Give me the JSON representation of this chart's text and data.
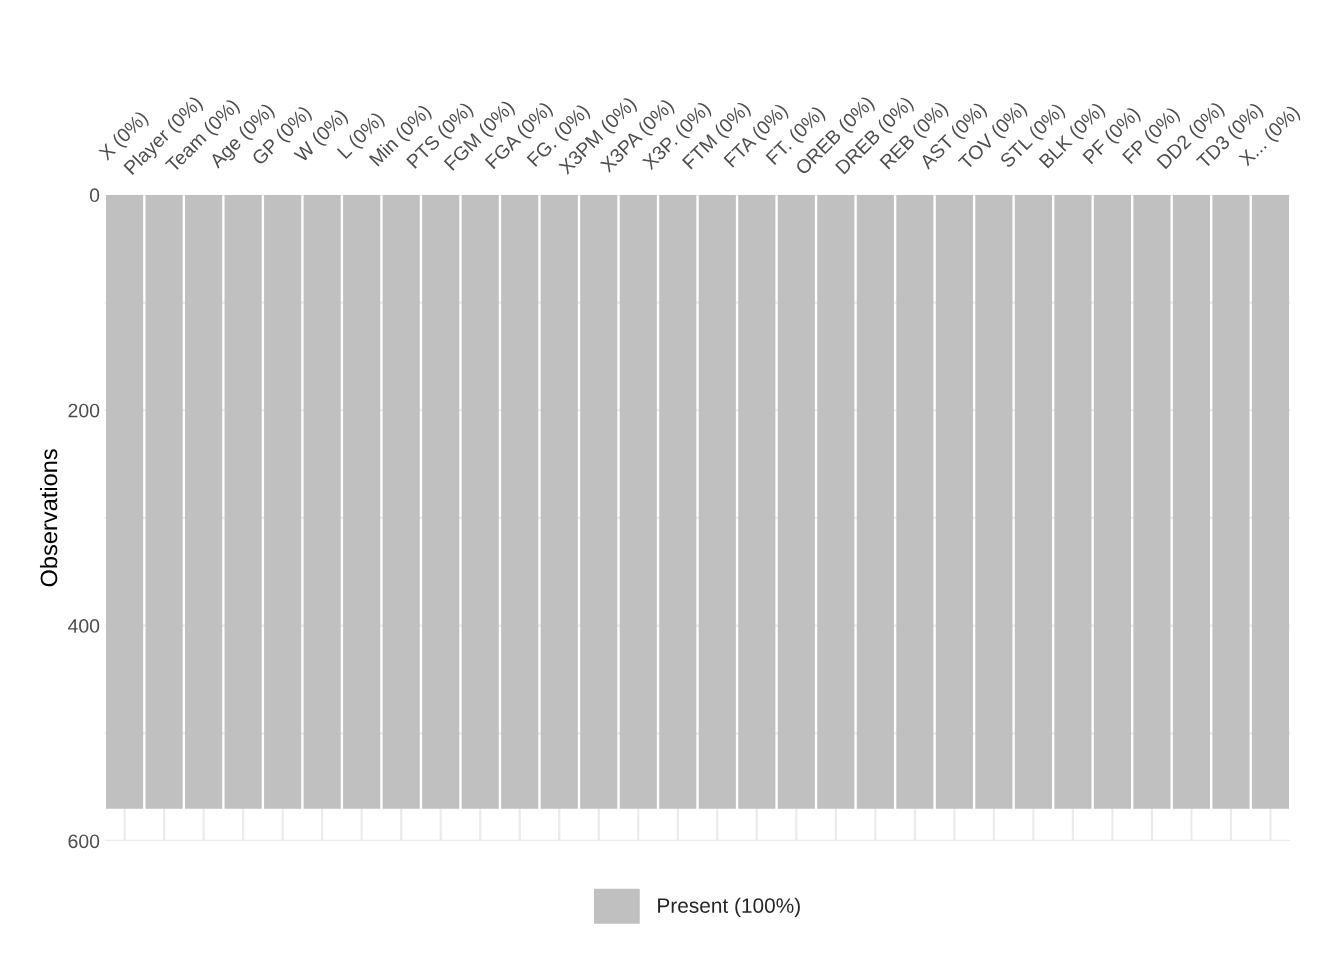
{
  "chart_data": {
    "type": "bar",
    "categories": [
      "X (0%)",
      "Player (0%)",
      "Team (0%)",
      "Age (0%)",
      "GP (0%)",
      "W (0%)",
      "L (0%)",
      "Min (0%)",
      "PTS (0%)",
      "FGM (0%)",
      "FGA (0%)",
      "FG. (0%)",
      "X3PM (0%)",
      "X3PA (0%)",
      "X3P. (0%)",
      "FTM (0%)",
      "FTA (0%)",
      "FT. (0%)",
      "OREB (0%)",
      "DREB (0%)",
      "REB (0%)",
      "AST (0%)",
      "TOV (0%)",
      "STL (0%)",
      "BLK (0%)",
      "PF (0%)",
      "FP (0%)",
      "DD2 (0%)",
      "TD3 (0%)",
      "X... (0%)"
    ],
    "series": [
      {
        "name": "Present (100%)",
        "color": "#c0c0c0",
        "values": [
          570,
          570,
          570,
          570,
          570,
          570,
          570,
          570,
          570,
          570,
          570,
          570,
          570,
          570,
          570,
          570,
          570,
          570,
          570,
          570,
          570,
          570,
          570,
          570,
          570,
          570,
          570,
          570,
          570,
          570
        ]
      }
    ],
    "ylabel": "Observations",
    "ylim": [
      600,
      0
    ],
    "yticks": [
      0,
      {
        "value": 100,
        "label": null
      },
      200,
      {
        "value": 300,
        "label": null
      },
      400,
      {
        "value": 500,
        "label": null
      },
      600
    ],
    "grid": true,
    "legend": "bottom"
  }
}
